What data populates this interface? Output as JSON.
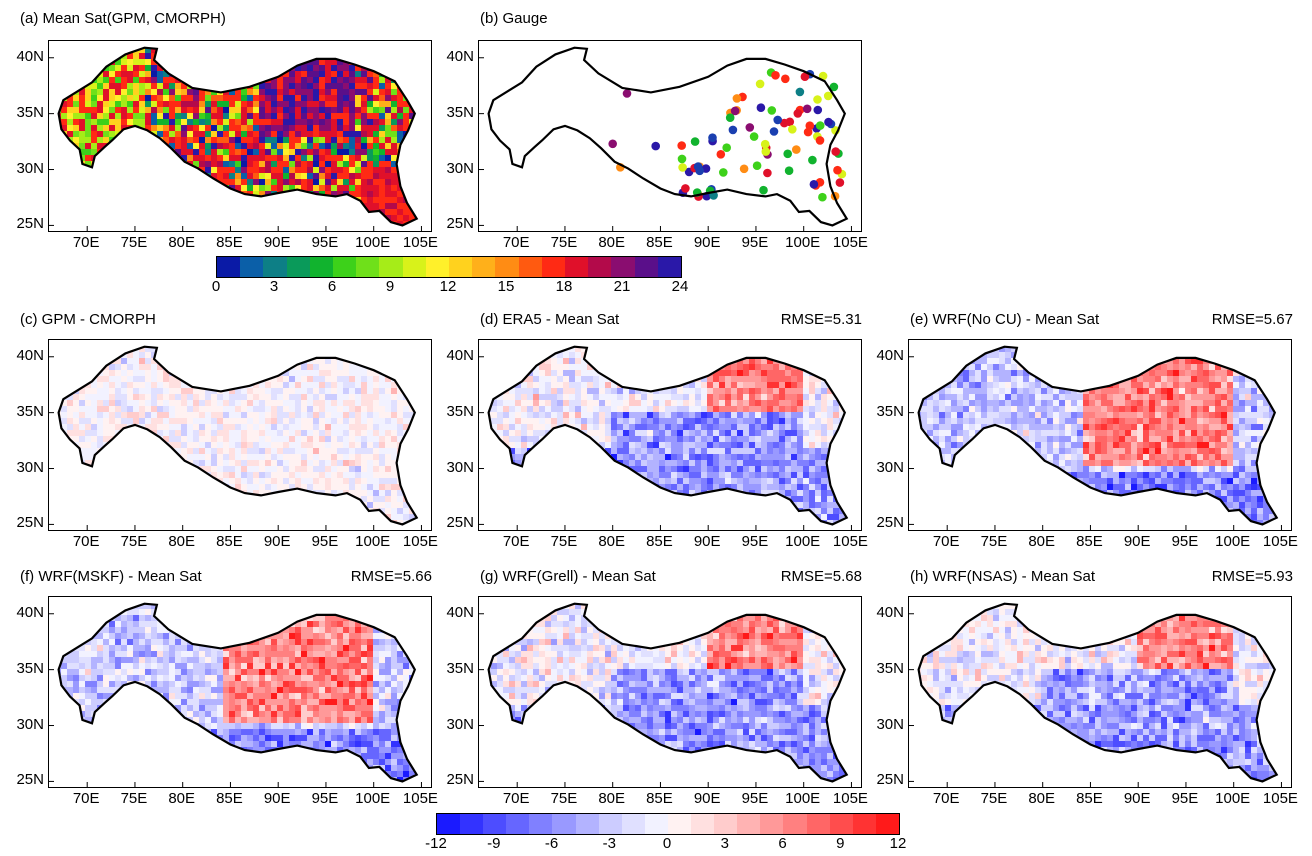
{
  "panels": [
    {
      "id": "a",
      "title": "(a) Mean Sat(GPM, CMORPH)",
      "rmse": "",
      "kind": "mean"
    },
    {
      "id": "b",
      "title": "(b) Gauge",
      "rmse": "",
      "kind": "gauge"
    },
    {
      "id": "c",
      "title": "(c) GPM - CMORPH",
      "rmse": "",
      "kind": "diff-weak"
    },
    {
      "id": "d",
      "title": "(d) ERA5 - Mean Sat",
      "rmse": "RMSE=5.31",
      "kind": "diff-blue"
    },
    {
      "id": "e",
      "title": "(e) WRF(No CU) - Mean Sat",
      "rmse": "RMSE=5.67",
      "kind": "diff-red"
    },
    {
      "id": "f",
      "title": "(f) WRF(MSKF) - Mean Sat",
      "rmse": "RMSE=5.66",
      "kind": "diff-red"
    },
    {
      "id": "g",
      "title": "(g) WRF(Grell) - Mean Sat",
      "rmse": "RMSE=5.68",
      "kind": "diff-blue"
    },
    {
      "id": "h",
      "title": "(h) WRF(NSAS) - Mean Sat",
      "rmse": "RMSE=5.93",
      "kind": "diff-blue"
    }
  ],
  "axes": {
    "y_ticks": [
      "40N",
      "35N",
      "30N",
      "25N"
    ],
    "x_ticks": [
      "70E",
      "75E",
      "80E",
      "85E",
      "90E",
      "95E",
      "100E",
      "105E"
    ],
    "lon_range": [
      66,
      106
    ],
    "lat_range": [
      24.5,
      41.5
    ]
  },
  "colorbar_top": {
    "labels": [
      "0",
      "3",
      "6",
      "9",
      "12",
      "15",
      "18",
      "21",
      "24"
    ],
    "range": [
      0,
      24
    ],
    "colors": [
      "#0a1aa6",
      "#0b5fa8",
      "#0d7f86",
      "#0a9a5a",
      "#11b32e",
      "#3dd11a",
      "#6fe01a",
      "#a6ec18",
      "#d8f21a",
      "#fff02a",
      "#ffd21e",
      "#ffb01a",
      "#ff8c14",
      "#ff5a10",
      "#ff2a14",
      "#e0102a",
      "#b30a4a",
      "#8a0d70",
      "#5a0f8a",
      "#2a18a8"
    ]
  },
  "colorbar_bottom": {
    "labels": [
      "-12",
      "-9",
      "-6",
      "-3",
      "0",
      "3",
      "6",
      "9",
      "12"
    ],
    "range": [
      -12,
      12
    ],
    "colors": [
      "#1a1aff",
      "#3333ff",
      "#4d4dff",
      "#6666ff",
      "#8080ff",
      "#9999ff",
      "#b3b3ff",
      "#ccccff",
      "#e0e0ff",
      "#f2f2ff",
      "#fff2f2",
      "#ffe0e0",
      "#ffcccc",
      "#ffb3b3",
      "#ff9999",
      "#ff8080",
      "#ff6666",
      "#ff4d4d",
      "#ff3333",
      "#ff1a1a"
    ]
  },
  "gauge_colors": [
    "#1a3fb0",
    "#0d7f86",
    "#11b32e",
    "#d8f21a",
    "#ff8c14",
    "#e0102a",
    "#8a0d70",
    "#2a18a8",
    "#3dd11a",
    "#ff2a14"
  ],
  "tibet_outline_lonlat": [
    [
      67.5,
      36.2
    ],
    [
      69,
      37
    ],
    [
      70.5,
      37.8
    ],
    [
      72,
      39.2
    ],
    [
      74,
      40.3
    ],
    [
      76,
      40.9
    ],
    [
      77.3,
      40.8
    ],
    [
      77,
      39.8
    ],
    [
      78.5,
      38.6
    ],
    [
      81,
      37.3
    ],
    [
      84,
      36.9
    ],
    [
      87,
      37.4
    ],
    [
      90,
      38.3
    ],
    [
      92,
      39.3
    ],
    [
      94,
      39.9
    ],
    [
      96,
      39.9
    ],
    [
      98,
      39.4
    ],
    [
      100,
      38.8
    ],
    [
      102.2,
      37.9
    ],
    [
      103.5,
      36.2
    ],
    [
      104.3,
      35
    ],
    [
      103.6,
      33.5
    ],
    [
      102.8,
      32.2
    ],
    [
      102.4,
      30.5
    ],
    [
      102.8,
      28.5
    ],
    [
      103.5,
      27
    ],
    [
      104.5,
      25.6
    ],
    [
      103,
      25
    ],
    [
      101.8,
      25.3
    ],
    [
      100.6,
      26.3
    ],
    [
      99.5,
      26.2
    ],
    [
      98.6,
      27.2
    ],
    [
      97.2,
      27.8
    ],
    [
      96,
      27.6
    ],
    [
      94,
      27.8
    ],
    [
      92,
      28.2
    ],
    [
      90,
      27.9
    ],
    [
      88.2,
      27.6
    ],
    [
      86.5,
      27.8
    ],
    [
      85,
      28.3
    ],
    [
      83.2,
      29.2
    ],
    [
      81.6,
      30.1
    ],
    [
      80.2,
      30.7
    ],
    [
      78.8,
      31.9
    ],
    [
      77.6,
      32.8
    ],
    [
      76.3,
      33.5
    ],
    [
      75,
      33.9
    ],
    [
      73.8,
      33.6
    ],
    [
      72.6,
      32.6
    ],
    [
      71.8,
      32
    ],
    [
      70.8,
      31.2
    ],
    [
      70.5,
      30.2
    ],
    [
      69.5,
      30.5
    ],
    [
      69.2,
      31.8
    ],
    [
      68.2,
      32.6
    ],
    [
      67.3,
      33.6
    ],
    [
      67,
      35
    ]
  ]
}
